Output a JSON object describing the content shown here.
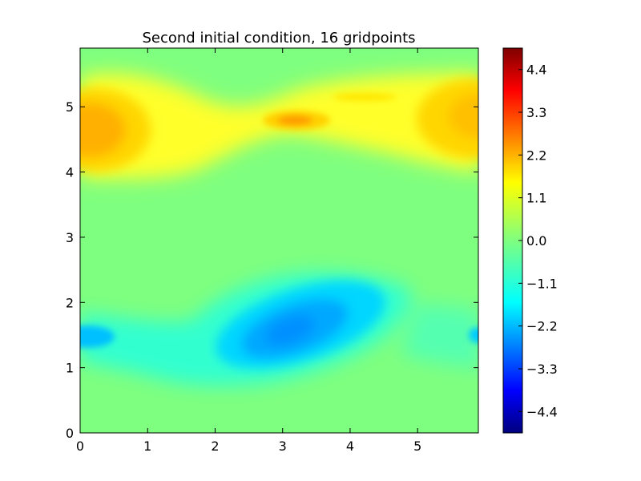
{
  "chart_data": {
    "type": "heatmap",
    "subtype": "filled-contour",
    "title": "Second initial condition, 16 gridpoints",
    "xlabel": "",
    "ylabel": "",
    "xlim": [
      0,
      5.9
    ],
    "ylim": [
      0,
      5.9
    ],
    "x_ticks": [
      "0",
      "1",
      "2",
      "3",
      "4",
      "5"
    ],
    "y_ticks": [
      "0",
      "1",
      "2",
      "3",
      "4",
      "5"
    ],
    "colormap": "jet",
    "colorbar": {
      "range": [
        -4.95,
        4.95
      ],
      "ticks": [
        "−4.4",
        "−3.3",
        "−2.2",
        "−1.1",
        "0.0",
        "1.1",
        "2.2",
        "3.3",
        "4.4"
      ]
    },
    "features": [
      {
        "x": 0.25,
        "y": 4.6,
        "value": 2.4
      },
      {
        "x": 5.9,
        "y": 4.8,
        "value": 2.0
      },
      {
        "x": 3.2,
        "y": 4.8,
        "value": 2.6
      },
      {
        "x": 4.2,
        "y": 5.15,
        "value": 1.4
      },
      {
        "x": 3.3,
        "y": 1.55,
        "value": -2.1
      },
      {
        "x": 0.15,
        "y": 1.45,
        "value": -1.8
      },
      {
        "x": 5.9,
        "y": 1.45,
        "value": -1.5
      }
    ]
  }
}
